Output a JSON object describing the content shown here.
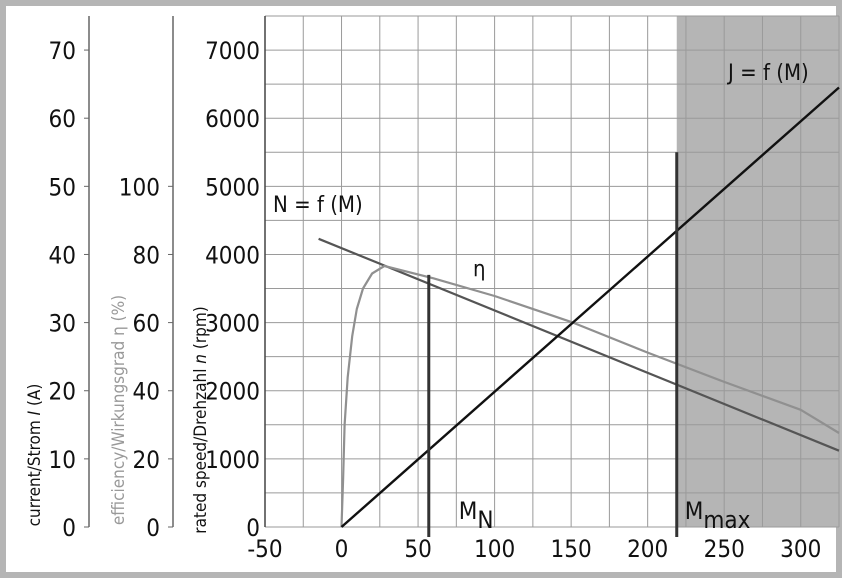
{
  "chart_data": {
    "type": "line",
    "x_ticks": [
      "-50",
      "0",
      "50",
      "100",
      "150",
      "200",
      "250",
      "300"
    ],
    "xlim": [
      -50,
      325
    ],
    "axes": {
      "speed": {
        "title_prefix": "rated speed/Drehzahl ",
        "title_italic": "n",
        "title_suffix": " (rpm)",
        "ticks": [
          "0",
          "1000",
          "2000",
          "3000",
          "4000",
          "5000",
          "6000",
          "7000"
        ],
        "ylim": [
          0,
          7500
        ]
      },
      "efficiency": {
        "title_prefix": "efficiency/Wirkungsgrad ",
        "title_symbol": "η",
        "title_suffix": " (%)",
        "ticks": [
          "0",
          "20",
          "40",
          "60",
          "80",
          "100"
        ]
      },
      "current": {
        "title_prefix": "current/Strom ",
        "title_italic": "I",
        "title_suffix": " (A)",
        "ticks": [
          "0",
          "10",
          "20",
          "30",
          "40",
          "50",
          "60",
          "70"
        ]
      }
    },
    "series": [
      {
        "name": "N = f (M)",
        "color": "#555555",
        "points": [
          [
            -15,
            4230
          ],
          [
            325,
            1120
          ]
        ]
      },
      {
        "name": "η",
        "color": "#909090",
        "points": [
          [
            0,
            0
          ],
          [
            1,
            700
          ],
          [
            2,
            1500
          ],
          [
            4,
            2200
          ],
          [
            7,
            2800
          ],
          [
            10,
            3200
          ],
          [
            14,
            3500
          ],
          [
            20,
            3720
          ],
          [
            28,
            3830
          ],
          [
            60,
            3650
          ],
          [
            100,
            3390
          ],
          [
            150,
            3010
          ],
          [
            200,
            2560
          ],
          [
            250,
            2130
          ],
          [
            300,
            1720
          ],
          [
            325,
            1380
          ]
        ]
      },
      {
        "name": "J = f (M)",
        "color": "#111111",
        "points": [
          [
            0,
            0
          ],
          [
            325,
            6450
          ]
        ]
      }
    ],
    "markers": [
      {
        "label_main": "M",
        "label_sub": "N",
        "x": 57,
        "y_top": 3700
      },
      {
        "label_main": "M",
        "label_sub": "max",
        "x": 219,
        "y_top": 5500
      }
    ],
    "shaded_region": {
      "x_from": 219,
      "x_to": 325,
      "color": "#b5b5b5"
    },
    "curve_labels": {
      "speed": "N = f (M)",
      "current": "J = f (M)",
      "efficiency": "η"
    },
    "grid": true
  }
}
